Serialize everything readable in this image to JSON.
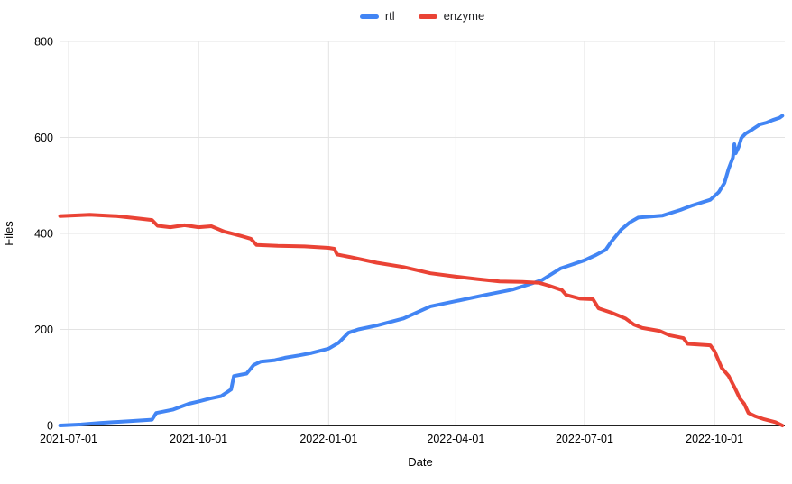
{
  "chart_data": {
    "type": "line",
    "title": "",
    "xlabel": "Date",
    "ylabel": "Files",
    "ylim": [
      0,
      800
    ],
    "y_ticks": [
      0,
      200,
      400,
      600,
      800
    ],
    "x_ticks": [
      "2021-07-01",
      "2021-10-01",
      "2022-01-01",
      "2022-04-01",
      "2022-07-01",
      "2022-10-01"
    ],
    "x_domain": [
      "2021-06-24",
      "2022-11-20"
    ],
    "grid": true,
    "legend_position": "top-center",
    "style": {
      "grid_color": "#e3e3e3",
      "axis_color": "#212121",
      "text_color": "#000000",
      "line_width": 4
    },
    "series": [
      {
        "name": "rtl",
        "color": "#4285F4",
        "points": [
          [
            "2021-06-25",
            0
          ],
          [
            "2021-07-10",
            2
          ],
          [
            "2021-07-23",
            5
          ],
          [
            "2021-08-13",
            9
          ],
          [
            "2021-08-29",
            12
          ],
          [
            "2021-09-01",
            26
          ],
          [
            "2021-09-13",
            33
          ],
          [
            "2021-09-24",
            45
          ],
          [
            "2021-10-01",
            50
          ],
          [
            "2021-10-09",
            56
          ],
          [
            "2021-10-17",
            61
          ],
          [
            "2021-10-24",
            75
          ],
          [
            "2021-10-26",
            103
          ],
          [
            "2021-11-04",
            108
          ],
          [
            "2021-11-09",
            126
          ],
          [
            "2021-11-14",
            133
          ],
          [
            "2021-11-24",
            136
          ],
          [
            "2021-12-01",
            141
          ],
          [
            "2021-12-11",
            146
          ],
          [
            "2021-12-20",
            151
          ],
          [
            "2022-01-01",
            160
          ],
          [
            "2022-01-08",
            172
          ],
          [
            "2022-01-15",
            193
          ],
          [
            "2022-01-22",
            200
          ],
          [
            "2022-02-04",
            208
          ],
          [
            "2022-02-23",
            223
          ],
          [
            "2022-03-14",
            248
          ],
          [
            "2022-04-01",
            259
          ],
          [
            "2022-04-22",
            272
          ],
          [
            "2022-05-11",
            283
          ],
          [
            "2022-05-24",
            295
          ],
          [
            "2022-06-01",
            303
          ],
          [
            "2022-06-14",
            327
          ],
          [
            "2022-06-23",
            336
          ],
          [
            "2022-07-01",
            344
          ],
          [
            "2022-07-09",
            355
          ],
          [
            "2022-07-16",
            366
          ],
          [
            "2022-07-20",
            383
          ],
          [
            "2022-07-27",
            408
          ],
          [
            "2022-08-02",
            423
          ],
          [
            "2022-08-08",
            433
          ],
          [
            "2022-08-25",
            437
          ],
          [
            "2022-09-07",
            449
          ],
          [
            "2022-09-15",
            458
          ],
          [
            "2022-09-28",
            470
          ],
          [
            "2022-10-04",
            486
          ],
          [
            "2022-10-08",
            505
          ],
          [
            "2022-10-11",
            535
          ],
          [
            "2022-10-14",
            558
          ],
          [
            "2022-10-15",
            586
          ],
          [
            "2022-10-16",
            567
          ],
          [
            "2022-10-18",
            580
          ],
          [
            "2022-10-20",
            599
          ],
          [
            "2022-10-23",
            608
          ],
          [
            "2022-10-28",
            617
          ],
          [
            "2022-11-02",
            627
          ],
          [
            "2022-11-07",
            631
          ],
          [
            "2022-11-11",
            636
          ],
          [
            "2022-11-16",
            641
          ],
          [
            "2022-11-18",
            645
          ]
        ]
      },
      {
        "name": "enzyme",
        "color": "#EA4335",
        "points": [
          [
            "2021-06-25",
            436
          ],
          [
            "2021-07-16",
            439
          ],
          [
            "2021-08-04",
            436
          ],
          [
            "2021-08-20",
            431
          ],
          [
            "2021-08-29",
            428
          ],
          [
            "2021-09-02",
            416
          ],
          [
            "2021-09-11",
            413
          ],
          [
            "2021-09-21",
            417
          ],
          [
            "2021-10-01",
            413
          ],
          [
            "2021-10-10",
            415
          ],
          [
            "2021-10-19",
            404
          ],
          [
            "2021-11-01",
            394
          ],
          [
            "2021-11-07",
            389
          ],
          [
            "2021-11-11",
            376
          ],
          [
            "2021-11-26",
            374
          ],
          [
            "2021-12-15",
            373
          ],
          [
            "2022-01-01",
            370
          ],
          [
            "2022-01-05",
            368
          ],
          [
            "2022-01-07",
            356
          ],
          [
            "2022-01-16",
            351
          ],
          [
            "2022-02-04",
            339
          ],
          [
            "2022-02-23",
            330
          ],
          [
            "2022-03-14",
            317
          ],
          [
            "2022-04-01",
            310
          ],
          [
            "2022-04-16",
            305
          ],
          [
            "2022-05-02",
            300
          ],
          [
            "2022-05-18",
            299
          ],
          [
            "2022-05-30",
            297
          ],
          [
            "2022-06-06",
            291
          ],
          [
            "2022-06-15",
            282
          ],
          [
            "2022-06-18",
            272
          ],
          [
            "2022-06-28",
            264
          ],
          [
            "2022-07-07",
            263
          ],
          [
            "2022-07-11",
            244
          ],
          [
            "2022-07-20",
            235
          ],
          [
            "2022-07-30",
            223
          ],
          [
            "2022-08-05",
            210
          ],
          [
            "2022-08-11",
            203
          ],
          [
            "2022-08-23",
            197
          ],
          [
            "2022-08-30",
            188
          ],
          [
            "2022-09-09",
            182
          ],
          [
            "2022-09-12",
            170
          ],
          [
            "2022-09-28",
            167
          ],
          [
            "2022-10-01",
            155
          ],
          [
            "2022-10-06",
            120
          ],
          [
            "2022-10-11",
            103
          ],
          [
            "2022-10-15",
            80
          ],
          [
            "2022-10-19",
            56
          ],
          [
            "2022-10-22",
            45
          ],
          [
            "2022-10-25",
            26
          ],
          [
            "2022-10-30",
            19
          ],
          [
            "2022-11-05",
            13
          ],
          [
            "2022-11-13",
            7
          ],
          [
            "2022-11-18",
            0
          ]
        ]
      }
    ]
  }
}
